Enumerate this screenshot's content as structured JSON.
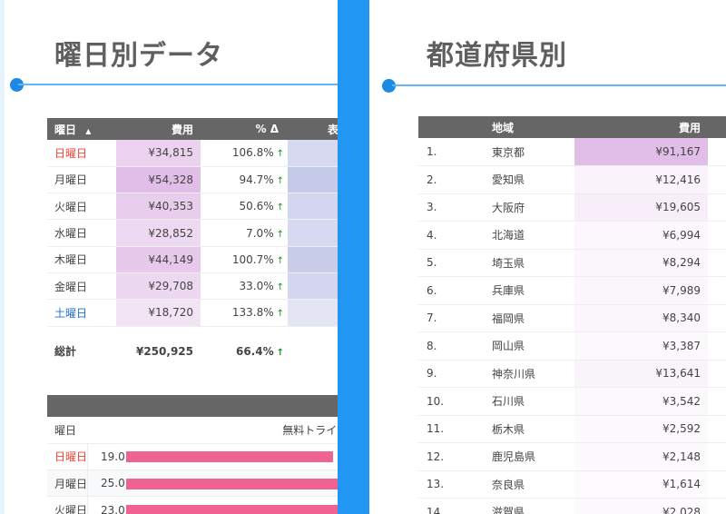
{
  "left": {
    "title": "曜日別データ",
    "table": {
      "headers": [
        "曜日",
        "費用",
        "% Δ",
        "表"
      ],
      "sort_icon": "sort-ascending-icon",
      "rows": [
        {
          "day": "日曜日",
          "cost": "¥34,815",
          "value": 34815,
          "pct": "106.8%",
          "color": "#f44336"
        },
        {
          "day": "月曜日",
          "cost": "¥54,328",
          "value": 54328,
          "pct": "94.7%",
          "color": "#444444"
        },
        {
          "day": "火曜日",
          "cost": "¥40,353",
          "value": 40353,
          "pct": "50.6%",
          "color": "#444444"
        },
        {
          "day": "水曜日",
          "cost": "¥28,852",
          "value": 28852,
          "pct": "7.0%",
          "color": "#444444"
        },
        {
          "day": "木曜日",
          "cost": "¥44,149",
          "value": 44149,
          "pct": "100.7%",
          "color": "#444444"
        },
        {
          "day": "金曜日",
          "cost": "¥29,708",
          "value": 29708,
          "pct": "33.0%",
          "color": "#444444"
        },
        {
          "day": "土曜日",
          "cost": "¥18,720",
          "value": 18720,
          "pct": "133.8%",
          "color": "#1e6fd9"
        }
      ],
      "total": {
        "label": "総計",
        "cost": "¥250,925",
        "pct": "66.4%"
      },
      "arrow": "↑"
    },
    "table2": {
      "col1": "曜日",
      "col2": "無料トライアルへの RE",
      "rows": [
        {
          "day": "日曜日",
          "value": "19.0",
          "color": "#f44336"
        },
        {
          "day": "月曜日",
          "value": "25.0",
          "color": "#444444"
        },
        {
          "day": "火曜日",
          "value": "23.0",
          "color": "#444444"
        }
      ]
    }
  },
  "right": {
    "title": "都道府県別",
    "table": {
      "headers": [
        "",
        "地域",
        "費用"
      ],
      "rows": [
        {
          "rank": "1.",
          "region": "東京都",
          "cost": "¥91,167",
          "value": 91167
        },
        {
          "rank": "2.",
          "region": "愛知県",
          "cost": "¥12,416",
          "value": 12416
        },
        {
          "rank": "3.",
          "region": "大阪府",
          "cost": "¥19,605",
          "value": 19605
        },
        {
          "rank": "4.",
          "region": "北海道",
          "cost": "¥6,994",
          "value": 6994
        },
        {
          "rank": "5.",
          "region": "埼玉県",
          "cost": "¥8,294",
          "value": 8294
        },
        {
          "rank": "6.",
          "region": "兵庫県",
          "cost": "¥7,989",
          "value": 7989
        },
        {
          "rank": "7.",
          "region": "福岡県",
          "cost": "¥8,340",
          "value": 8340
        },
        {
          "rank": "8.",
          "region": "岡山県",
          "cost": "¥3,387",
          "value": 3387
        },
        {
          "rank": "9.",
          "region": "神奈川県",
          "cost": "¥13,641",
          "value": 13641
        },
        {
          "rank": "10.",
          "region": "石川県",
          "cost": "¥3,542",
          "value": 3542
        },
        {
          "rank": "11.",
          "region": "栃木県",
          "cost": "¥2,592",
          "value": 2592
        },
        {
          "rank": "12.",
          "region": "鹿児島県",
          "cost": "¥2,148",
          "value": 2148
        },
        {
          "rank": "13.",
          "region": "奈良県",
          "cost": "¥1,614",
          "value": 1614
        },
        {
          "rank": "14.",
          "region": "滋賀県",
          "cost": "¥2,028",
          "value": 2028
        }
      ]
    }
  },
  "colors": {
    "accent": "#2196f3",
    "heat": "#e1bee7",
    "bar": "#f06292",
    "header": "#666666"
  }
}
